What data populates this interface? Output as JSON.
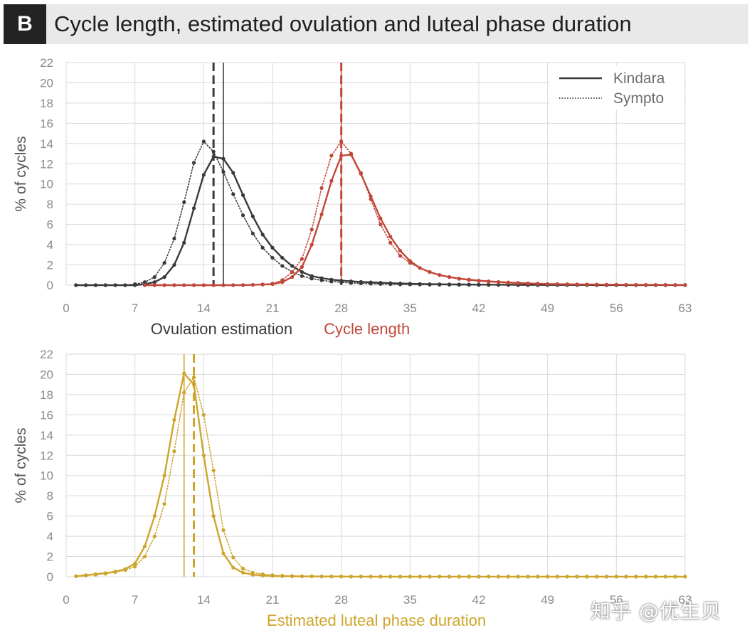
{
  "header": {
    "panel_label": "B",
    "title": "Cycle length, estimated ovulation and luteal phase duration"
  },
  "colors": {
    "dark": "#3a3a3a",
    "red": "#c0483a",
    "gold": "#cda52c",
    "grid": "#d9d9d9"
  },
  "watermark": "知乎 @优生贝",
  "chart_data": [
    {
      "type": "line",
      "ylabel": "% of cycles",
      "ylim": [
        0,
        22
      ],
      "yticks": [
        0,
        2,
        4,
        6,
        8,
        10,
        12,
        14,
        16,
        18,
        20,
        22
      ],
      "xlim": [
        0,
        63
      ],
      "xticks": [
        0,
        7,
        14,
        21,
        28,
        35,
        42,
        49,
        56,
        63
      ],
      "xlabels": [
        {
          "text": "Ovulation estimation",
          "color": "#3a3a3a"
        },
        {
          "text": "Cycle length",
          "color": "#c0483a"
        }
      ],
      "legend": {
        "position": "top-right",
        "entries": [
          {
            "label": "Kindara",
            "style": "solid"
          },
          {
            "label": "Sympto",
            "style": "dotted"
          }
        ]
      },
      "series": [
        {
          "name": "Ovulation estimation - Kindara",
          "source": "Kindara",
          "group": "Ovulation estimation",
          "style": "solid",
          "color": "#3a3a3a",
          "median": 16,
          "median_style": "solid",
          "x": [
            1,
            2,
            3,
            4,
            5,
            6,
            7,
            8,
            9,
            10,
            11,
            12,
            13,
            14,
            15,
            16,
            17,
            18,
            19,
            20,
            21,
            22,
            23,
            24,
            25,
            26,
            27,
            28,
            29,
            30,
            31,
            32,
            33,
            34,
            35,
            36,
            37,
            38,
            39,
            40,
            41,
            42,
            43,
            44,
            45,
            46,
            47,
            48,
            49,
            50,
            51,
            52,
            53,
            54,
            55,
            56,
            57,
            58,
            59,
            60,
            61,
            62,
            63
          ],
          "y": [
            0,
            0,
            0,
            0,
            0,
            0,
            0,
            0.1,
            0.3,
            0.8,
            2,
            4.2,
            7.6,
            10.9,
            12.7,
            12.5,
            11.1,
            8.9,
            6.8,
            5.0,
            3.7,
            2.7,
            1.9,
            1.3,
            0.9,
            0.7,
            0.55,
            0.45,
            0.38,
            0.32,
            0.28,
            0.24,
            0.2,
            0.17,
            0.14,
            0.12,
            0.1,
            0.09,
            0.08,
            0.07,
            0.06,
            0.05,
            0.05,
            0.04,
            0.04,
            0.03,
            0.03,
            0.03,
            0.02,
            0.02,
            0.02,
            0.02,
            0.02,
            0.01,
            0.01,
            0.01,
            0.01,
            0.01,
            0.01,
            0.01,
            0.01,
            0.01,
            0.01
          ]
        },
        {
          "name": "Ovulation estimation - Sympto",
          "source": "Sympto",
          "group": "Ovulation estimation",
          "style": "dotted",
          "color": "#3a3a3a",
          "median": 15,
          "median_style": "dashed",
          "x": [
            1,
            2,
            3,
            4,
            5,
            6,
            7,
            8,
            9,
            10,
            11,
            12,
            13,
            14,
            15,
            16,
            17,
            18,
            19,
            20,
            21,
            22,
            23,
            24,
            25,
            26,
            27,
            28,
            29,
            30,
            31,
            32,
            33,
            34,
            35,
            36,
            37,
            38,
            39,
            40,
            41,
            42,
            43,
            44,
            45,
            46,
            47,
            48,
            49,
            50,
            51,
            52,
            53,
            54,
            55,
            56,
            57,
            58,
            59,
            60,
            61,
            62,
            63
          ],
          "y": [
            0,
            0,
            0,
            0,
            0,
            0,
            0.1,
            0.3,
            0.8,
            2.2,
            4.6,
            8.2,
            12.1,
            14.2,
            13.2,
            11.2,
            9.0,
            6.9,
            5.1,
            3.7,
            2.7,
            1.9,
            1.3,
            0.9,
            0.65,
            0.48,
            0.36,
            0.28,
            0.22,
            0.18,
            0.15,
            0.12,
            0.1,
            0.08,
            0.07,
            0.06,
            0.05,
            0.04,
            0.04,
            0.03,
            0.03,
            0.02,
            0.02,
            0.02,
            0.02,
            0.01,
            0.01,
            0.01,
            0.01,
            0.01,
            0.01,
            0.01,
            0.01,
            0,
            0,
            0,
            0,
            0,
            0,
            0,
            0,
            0,
            0
          ]
        },
        {
          "name": "Cycle length - Kindara",
          "source": "Kindara",
          "group": "Cycle length",
          "style": "solid",
          "color": "#c0483a",
          "median": 28,
          "median_style": "solid",
          "x": [
            8,
            9,
            10,
            11,
            12,
            13,
            14,
            15,
            16,
            17,
            18,
            19,
            20,
            21,
            22,
            23,
            24,
            25,
            26,
            27,
            28,
            29,
            30,
            31,
            32,
            33,
            34,
            35,
            36,
            37,
            38,
            39,
            40,
            41,
            42,
            43,
            44,
            45,
            46,
            47,
            48,
            49,
            50,
            51,
            52,
            53,
            54,
            55,
            56,
            57,
            58,
            59,
            60,
            61,
            62,
            63
          ],
          "y": [
            0,
            0,
            0,
            0,
            0,
            0,
            0,
            0,
            0,
            0,
            0.01,
            0.03,
            0.06,
            0.1,
            0.3,
            0.8,
            1.8,
            4.0,
            7.0,
            10.3,
            12.8,
            12.9,
            11.0,
            8.8,
            6.6,
            4.8,
            3.4,
            2.4,
            1.7,
            1.3,
            1.0,
            0.8,
            0.65,
            0.55,
            0.45,
            0.38,
            0.32,
            0.27,
            0.22,
            0.18,
            0.15,
            0.12,
            0.1,
            0.09,
            0.08,
            0.07,
            0.06,
            0.05,
            0.05,
            0.04,
            0.04,
            0.03,
            0.03,
            0.03,
            0.02,
            0.02
          ]
        },
        {
          "name": "Cycle length - Sympto",
          "source": "Sympto",
          "group": "Cycle length",
          "style": "dotted",
          "color": "#c0483a",
          "median": 28,
          "median_style": "dashed",
          "x": [
            8,
            9,
            10,
            11,
            12,
            13,
            14,
            15,
            16,
            17,
            18,
            19,
            20,
            21,
            22,
            23,
            24,
            25,
            26,
            27,
            28,
            29,
            30,
            31,
            32,
            33,
            34,
            35,
            36,
            37,
            38,
            39,
            40,
            41,
            42,
            43,
            44,
            45,
            46,
            47,
            48,
            49,
            50,
            51,
            52,
            53,
            54,
            55,
            56,
            57,
            58,
            59,
            60,
            61,
            62,
            63
          ],
          "y": [
            0,
            0,
            0,
            0,
            0,
            0,
            0,
            0,
            0,
            0,
            0.01,
            0.03,
            0.08,
            0.15,
            0.5,
            1.3,
            2.6,
            5.5,
            9.6,
            12.8,
            14.2,
            13.0,
            11.1,
            8.5,
            6.0,
            4.2,
            2.9,
            2.2,
            1.7,
            1.3,
            1.0,
            0.8,
            0.62,
            0.5,
            0.4,
            0.33,
            0.27,
            0.22,
            0.18,
            0.15,
            0.12,
            0.1,
            0.09,
            0.08,
            0.07,
            0.06,
            0.05,
            0.05,
            0.04,
            0.04,
            0.03,
            0.03,
            0.03,
            0.02,
            0.02,
            0.02
          ]
        }
      ]
    },
    {
      "type": "line",
      "ylabel": "% of cycles",
      "ylim": [
        0,
        22
      ],
      "yticks": [
        0,
        2,
        4,
        6,
        8,
        10,
        12,
        14,
        16,
        18,
        20,
        22
      ],
      "xlim": [
        0,
        63
      ],
      "xticks": [
        0,
        7,
        14,
        21,
        28,
        35,
        42,
        49,
        56,
        63
      ],
      "xlabels": [
        {
          "text": "Estimated luteal phase duration",
          "color": "#cda52c"
        }
      ],
      "series": [
        {
          "name": "Estimated luteal phase duration - Kindara",
          "source": "Kindara",
          "group": "Estimated luteal phase duration",
          "style": "solid",
          "color": "#cda52c",
          "median": 12,
          "median_style": "solid",
          "x": [
            1,
            2,
            3,
            4,
            5,
            6,
            7,
            8,
            9,
            10,
            11,
            12,
            13,
            14,
            15,
            16,
            17,
            18,
            19,
            20,
            21,
            22,
            23,
            24,
            25,
            26,
            27,
            28,
            29,
            30,
            31,
            32,
            33,
            34,
            35,
            36,
            37,
            38,
            39,
            40,
            41,
            42,
            43,
            44,
            45,
            46,
            47,
            48,
            49,
            50,
            51,
            52,
            53,
            54,
            55,
            56,
            57,
            58,
            59,
            60,
            61,
            62,
            63
          ],
          "y": [
            0.05,
            0.15,
            0.25,
            0.35,
            0.5,
            0.75,
            1.3,
            3.0,
            6.0,
            10.0,
            15.5,
            20.1,
            19.0,
            12.0,
            6.0,
            2.3,
            0.9,
            0.4,
            0.2,
            0.12,
            0.08,
            0.06,
            0.04,
            0.03,
            0.03,
            0.02,
            0.02,
            0.02,
            0.01,
            0.01,
            0.01,
            0.01,
            0.01,
            0.01,
            0.01,
            0.01,
            0.01,
            0.01,
            0.01,
            0.01,
            0.01,
            0.01,
            0.01,
            0.01,
            0.01,
            0.01,
            0.01,
            0.01,
            0.01,
            0.01,
            0.01,
            0.01,
            0.01,
            0.01,
            0.01,
            0.01,
            0.01,
            0.01,
            0.01,
            0.01,
            0.01,
            0.01,
            0.01
          ]
        },
        {
          "name": "Estimated luteal phase duration - Sympto",
          "source": "Sympto",
          "group": "Estimated luteal phase duration",
          "style": "dotted",
          "color": "#cda52c",
          "median": 13,
          "median_style": "dashed",
          "x": [
            1,
            2,
            3,
            4,
            5,
            6,
            7,
            8,
            9,
            10,
            11,
            12,
            13,
            14,
            15,
            16,
            17,
            18,
            19,
            20,
            21,
            22,
            23,
            24,
            25,
            26,
            27,
            28,
            29,
            30,
            31,
            32,
            33,
            34,
            35,
            36,
            37,
            38,
            39,
            40,
            41,
            42,
            43,
            44,
            45,
            46,
            47,
            48,
            49,
            50,
            51,
            52,
            53,
            54,
            55,
            56,
            57,
            58,
            59,
            60,
            61,
            62,
            63
          ],
          "y": [
            0.05,
            0.1,
            0.2,
            0.3,
            0.45,
            0.65,
            1.0,
            2.0,
            4.0,
            7.2,
            12.4,
            18.2,
            19.7,
            16.0,
            10.5,
            4.6,
            1.9,
            0.8,
            0.4,
            0.25,
            0.15,
            0.1,
            0.07,
            0.05,
            0.04,
            0.03,
            0.03,
            0.02,
            0.02,
            0.02,
            0.02,
            0.01,
            0.01,
            0.01,
            0.01,
            0.01,
            0.01,
            0.01,
            0.01,
            0.01,
            0.01,
            0.01,
            0.01,
            0.01,
            0.01,
            0.01,
            0.01,
            0.01,
            0.01,
            0.01,
            0.01,
            0.01,
            0.01,
            0.01,
            0.01,
            0.01,
            0.01,
            0.01,
            0.01,
            0.01,
            0.01,
            0.01,
            0.01
          ]
        }
      ]
    }
  ]
}
